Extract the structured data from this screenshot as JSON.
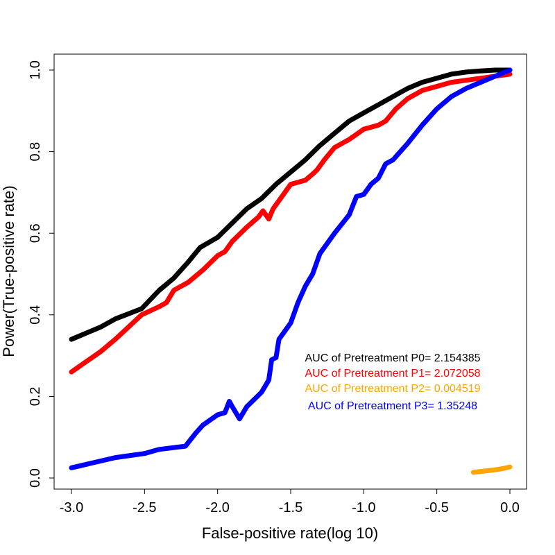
{
  "chart_data": {
    "type": "line",
    "title": "",
    "xlabel": "False-positive rate(log 10)",
    "ylabel": "Power(True-positive rate)",
    "xlim": [
      -3.0,
      0.0
    ],
    "ylim": [
      0.0,
      1.0
    ],
    "x_ticks": [
      "-3.0",
      "-2.5",
      "-2.0",
      "-1.5",
      "-1.0",
      "-0.5",
      "0.0"
    ],
    "y_ticks": [
      "0.0",
      "0.2",
      "0.4",
      "0.6",
      "0.8",
      "1.0"
    ],
    "grid": false,
    "annotations": [
      {
        "text": "AUC of Pretreatment P0= 2.154385",
        "color": "#000000"
      },
      {
        "text": "AUC of Pretreatment P1= 2.072058",
        "color": "#ff0000"
      },
      {
        "text": "AUC of Pretreatment P2= 0.004519",
        "color": "#ffa500"
      },
      {
        "text": "AUC of Pretreatment P3= 1.35248",
        "color": "#0000ff"
      }
    ],
    "series": [
      {
        "color": "#000000",
        "points": [
          [
            -3.0,
            0.34
          ],
          [
            -2.8,
            0.37
          ],
          [
            -2.7,
            0.39
          ],
          [
            -2.52,
            0.415
          ],
          [
            -2.4,
            0.46
          ],
          [
            -2.3,
            0.49
          ],
          [
            -2.2,
            0.53
          ],
          [
            -2.12,
            0.565
          ],
          [
            -2.0,
            0.59
          ],
          [
            -1.9,
            0.625
          ],
          [
            -1.8,
            0.66
          ],
          [
            -1.7,
            0.685
          ],
          [
            -1.6,
            0.72
          ],
          [
            -1.5,
            0.75
          ],
          [
            -1.4,
            0.78
          ],
          [
            -1.3,
            0.815
          ],
          [
            -1.2,
            0.845
          ],
          [
            -1.1,
            0.875
          ],
          [
            -1.0,
            0.895
          ],
          [
            -0.9,
            0.915
          ],
          [
            -0.8,
            0.935
          ],
          [
            -0.7,
            0.955
          ],
          [
            -0.6,
            0.97
          ],
          [
            -0.5,
            0.98
          ],
          [
            -0.4,
            0.99
          ],
          [
            -0.3,
            0.995
          ],
          [
            -0.2,
            0.998
          ],
          [
            -0.1,
            1.0
          ],
          [
            0.0,
            1.0
          ]
        ]
      },
      {
        "color": "#ff0000",
        "points": [
          [
            -3.0,
            0.26
          ],
          [
            -2.8,
            0.31
          ],
          [
            -2.7,
            0.34
          ],
          [
            -2.52,
            0.4
          ],
          [
            -2.4,
            0.42
          ],
          [
            -2.35,
            0.43
          ],
          [
            -2.3,
            0.46
          ],
          [
            -2.2,
            0.48
          ],
          [
            -2.1,
            0.51
          ],
          [
            -2.0,
            0.545
          ],
          [
            -1.95,
            0.555
          ],
          [
            -1.9,
            0.58
          ],
          [
            -1.8,
            0.615
          ],
          [
            -1.72,
            0.64
          ],
          [
            -1.69,
            0.655
          ],
          [
            -1.67,
            0.645
          ],
          [
            -1.65,
            0.635
          ],
          [
            -1.62,
            0.66
          ],
          [
            -1.55,
            0.695
          ],
          [
            -1.5,
            0.72
          ],
          [
            -1.45,
            0.725
          ],
          [
            -1.4,
            0.73
          ],
          [
            -1.35,
            0.745
          ],
          [
            -1.32,
            0.755
          ],
          [
            -1.27,
            0.78
          ],
          [
            -1.2,
            0.81
          ],
          [
            -1.1,
            0.83
          ],
          [
            -1.0,
            0.855
          ],
          [
            -0.9,
            0.865
          ],
          [
            -0.85,
            0.875
          ],
          [
            -0.78,
            0.905
          ],
          [
            -0.7,
            0.93
          ],
          [
            -0.6,
            0.95
          ],
          [
            -0.5,
            0.96
          ],
          [
            -0.4,
            0.97
          ],
          [
            -0.3,
            0.975
          ],
          [
            -0.2,
            0.98
          ],
          [
            -0.1,
            0.985
          ],
          [
            0.0,
            0.99
          ]
        ]
      },
      {
        "color": "#ffa500",
        "points": [
          [
            -0.25,
            0.014
          ],
          [
            -0.2,
            0.016
          ],
          [
            -0.15,
            0.018
          ],
          [
            -0.1,
            0.02
          ],
          [
            -0.05,
            0.023
          ],
          [
            0.0,
            0.027
          ]
        ]
      },
      {
        "color": "#0000ff",
        "points": [
          [
            -3.0,
            0.025
          ],
          [
            -2.7,
            0.05
          ],
          [
            -2.5,
            0.06
          ],
          [
            -2.4,
            0.07
          ],
          [
            -2.22,
            0.078
          ],
          [
            -2.15,
            0.11
          ],
          [
            -2.1,
            0.13
          ],
          [
            -2.0,
            0.155
          ],
          [
            -1.95,
            0.16
          ],
          [
            -1.92,
            0.188
          ],
          [
            -1.9,
            0.175
          ],
          [
            -1.85,
            0.145
          ],
          [
            -1.8,
            0.175
          ],
          [
            -1.7,
            0.21
          ],
          [
            -1.65,
            0.24
          ],
          [
            -1.63,
            0.29
          ],
          [
            -1.6,
            0.295
          ],
          [
            -1.58,
            0.34
          ],
          [
            -1.5,
            0.38
          ],
          [
            -1.45,
            0.43
          ],
          [
            -1.4,
            0.47
          ],
          [
            -1.35,
            0.5
          ],
          [
            -1.3,
            0.55
          ],
          [
            -1.2,
            0.6
          ],
          [
            -1.1,
            0.645
          ],
          [
            -1.05,
            0.69
          ],
          [
            -1.0,
            0.695
          ],
          [
            -0.95,
            0.72
          ],
          [
            -0.9,
            0.735
          ],
          [
            -0.85,
            0.77
          ],
          [
            -0.8,
            0.78
          ],
          [
            -0.7,
            0.82
          ],
          [
            -0.6,
            0.865
          ],
          [
            -0.5,
            0.905
          ],
          [
            -0.4,
            0.935
          ],
          [
            -0.3,
            0.955
          ],
          [
            -0.2,
            0.97
          ],
          [
            -0.1,
            0.985
          ],
          [
            0.0,
            1.0
          ]
        ]
      }
    ]
  }
}
